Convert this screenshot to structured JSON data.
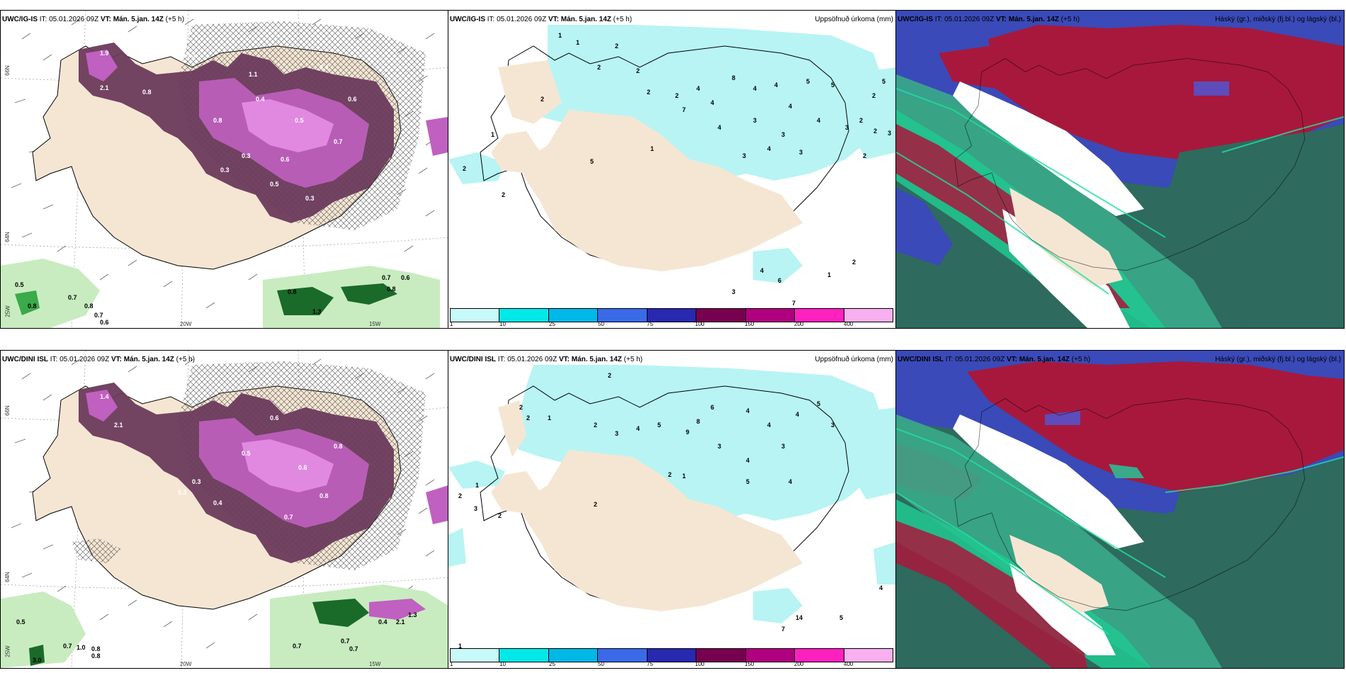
{
  "rows": [
    {
      "model": "UWC/IG-IS",
      "it_label": "IT:",
      "it_value": "05.01.2026 09Z",
      "vt_label": "VT:",
      "vt_value": "Mán. 5.jan. 14Z",
      "offset": "(+5 h)",
      "precip_title": "Uppsöfnuð úrkoma (mm)",
      "cloud_title": "Háský (gr.), miðský (fj.bl.) og lágský (bl.)"
    },
    {
      "model": "UWC/DINI ISL",
      "it_label": "IT:",
      "it_value": "05.01.2026 09Z",
      "vt_label": "VT:",
      "vt_value": "Mán. 5.jan. 14Z",
      "offset": "(+5 h)",
      "precip_title": "Uppsöfnuð úrkoma (mm)",
      "cloud_title": "Háský (gr.), miðský (fj.bl.) og lágský (bl.)"
    }
  ],
  "axis_labels": {
    "lat66": "66N",
    "lat64": "64N",
    "lon25": "25W",
    "lon20": "20W",
    "lon15": "15W"
  },
  "colorbar": {
    "ticks": [
      "1",
      "10",
      "25",
      "50",
      "75",
      "100",
      "150",
      "200",
      "400"
    ],
    "colors": [
      "#c8fafa",
      "#00e8e8",
      "#00b8e8",
      "#3a6ae8",
      "#2828b0",
      "#780050",
      "#b00080",
      "#ff20c0",
      "#f8b0f0"
    ]
  },
  "top_left_values": [
    "0.3",
    "1.9",
    "2.1",
    "0.8",
    "1.1",
    "0.4",
    "0.5",
    "0.3",
    "0.6",
    "0.3",
    "0.5",
    "0.7",
    "0.8",
    "0.6",
    "0.4",
    "0.3",
    "0.5",
    "0.7",
    "0.8",
    "0.8",
    "0.7",
    "0.6",
    "0.7",
    "0.8",
    "1.3",
    "0.8",
    "0.6"
  ],
  "top_mid_values": [
    "1",
    "2",
    "1",
    "2",
    "2",
    "2",
    "2",
    "2",
    "4",
    "7",
    "8",
    "4",
    "4",
    "4",
    "5",
    "5",
    "4",
    "3",
    "4",
    "4",
    "3",
    "3",
    "2",
    "3",
    "3",
    "4",
    "2",
    "2",
    "1",
    "2",
    "2",
    "1",
    "5",
    "4",
    "6",
    "1",
    "7",
    "2",
    "3",
    "5",
    "2",
    "3"
  ],
  "bottom_left_values": [
    "2.1",
    "1.4",
    "0.3",
    "0.6",
    "0.8",
    "0.6",
    "0.5",
    "0.8",
    "0.4",
    "0.3",
    "0.7",
    "0.5",
    "0.7",
    "0.8",
    "0.7",
    "1.0",
    "0.8",
    "3.0",
    "0.7",
    "0.7",
    "0.4",
    "2.1",
    "1.3"
  ],
  "bottom_mid_values": [
    "2",
    "2",
    "2",
    "1",
    "2",
    "3",
    "4",
    "5",
    "9",
    "8",
    "6",
    "4",
    "4",
    "4",
    "5",
    "3",
    "3",
    "4",
    "3",
    "2",
    "1",
    "5",
    "4",
    "14",
    "5",
    "7",
    "4",
    "1",
    "3",
    "2",
    "2",
    "1",
    "2"
  ],
  "legend_colors": {
    "land": "#f5e6d3",
    "precip_light": "#b8f4f4",
    "snow_dark": "#6b3a5c",
    "snow_mid": "#c060c0",
    "snow_light": "#e890e8",
    "green_light": "#c8ecc0",
    "green_dark": "#1a6a2a",
    "cloud_high": "#a8183c",
    "cloud_mid": "#3a8a7a",
    "cloud_low": "#4a5ad8"
  }
}
